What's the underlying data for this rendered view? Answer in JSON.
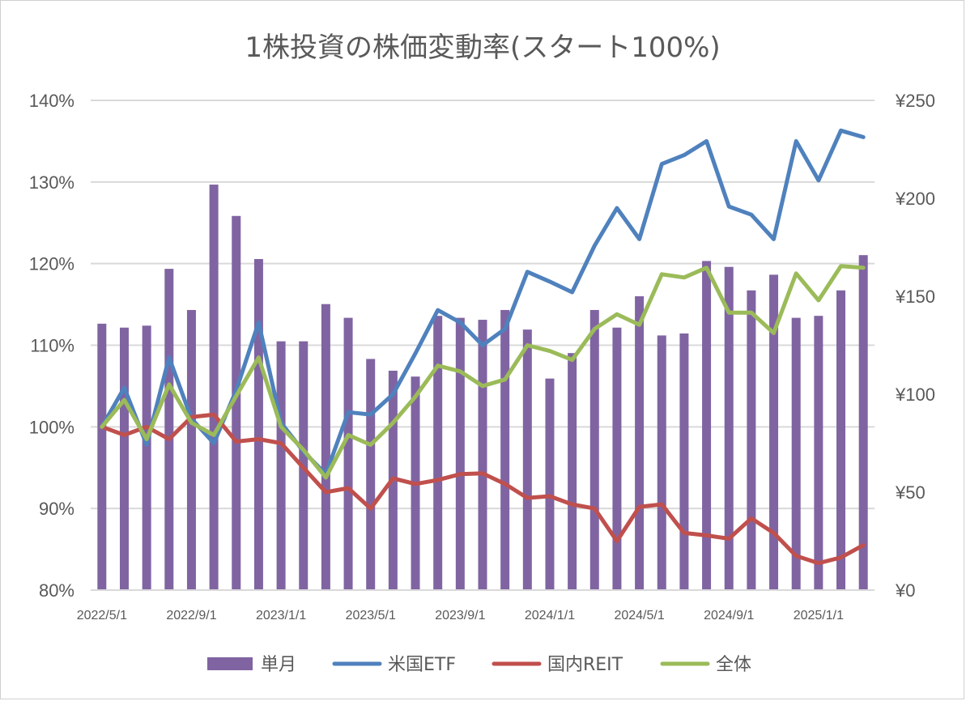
{
  "chart_data": {
    "type": "bar+line",
    "title": "1株投資の株価変動率(スタート100%)",
    "x": [
      "2022/5/1",
      "2022/6/1",
      "2022/7/1",
      "2022/8/1",
      "2022/9/1",
      "2022/10/1",
      "2022/11/1",
      "2022/12/1",
      "2023/1/1",
      "2023/2/1",
      "2023/3/1",
      "2023/4/1",
      "2023/5/1",
      "2023/6/1",
      "2023/7/1",
      "2023/8/1",
      "2023/9/1",
      "2023/10/1",
      "2023/11/1",
      "2023/12/1",
      "2024/1/1",
      "2024/2/1",
      "2024/3/1",
      "2024/4/1",
      "2024/5/1",
      "2024/6/1",
      "2024/7/1",
      "2024/8/1",
      "2024/9/1",
      "2024/10/1",
      "2024/11/1",
      "2024/12/1",
      "2025/1/1",
      "2025/2/1",
      "2025/3/1"
    ],
    "x_tick_labels": [
      "2022/5/1",
      "2022/9/1",
      "2023/1/1",
      "2023/5/1",
      "2023/9/1",
      "2024/1/1",
      "2024/5/1",
      "2024/9/1",
      "2025/1/1"
    ],
    "left_axis": {
      "ylim": [
        0.8,
        1.4
      ],
      "ticks": [
        "80%",
        "90%",
        "100%",
        "110%",
        "120%",
        "130%",
        "140%"
      ],
      "tick_values": [
        0.8,
        0.9,
        1.0,
        1.1,
        1.2,
        1.3,
        1.4
      ]
    },
    "right_axis": {
      "ylim": [
        0,
        250
      ],
      "ticks": [
        "¥0",
        "¥50",
        "¥100",
        "¥150",
        "¥200",
        "¥250"
      ],
      "tick_values": [
        0,
        50,
        100,
        150,
        200,
        250
      ]
    },
    "grid": "horizontal",
    "legend_position": "bottom",
    "bar_series": {
      "name": "単月",
      "axis": "right",
      "color": "#8064a2",
      "values": [
        136,
        134,
        135,
        164,
        143,
        207,
        191,
        169,
        127,
        127,
        146,
        139,
        118,
        112,
        109,
        140,
        139,
        138,
        143,
        133,
        108,
        121,
        143,
        134,
        150,
        130,
        131,
        168,
        165,
        153,
        161,
        139,
        140,
        153,
        171
      ]
    },
    "line_series": [
      {
        "name": "米国ETF",
        "axis": "left",
        "color": "#4f81bd",
        "values": [
          1.0,
          1.048,
          0.978,
          1.085,
          1.01,
          0.98,
          1.045,
          1.128,
          1.005,
          0.97,
          0.942,
          1.018,
          1.015,
          1.04,
          1.09,
          1.143,
          1.128,
          1.1,
          1.12,
          1.19,
          1.178,
          1.165,
          1.222,
          1.268,
          1.23,
          1.322,
          1.333,
          1.35,
          1.27,
          1.26,
          1.23,
          1.35,
          1.302,
          1.363,
          1.355
        ]
      },
      {
        "name": "国内REIT",
        "axis": "left",
        "color": "#c0504d",
        "values": [
          1.0,
          0.99,
          1.0,
          0.985,
          1.012,
          1.015,
          0.982,
          0.985,
          0.98,
          0.95,
          0.92,
          0.925,
          0.9,
          0.937,
          0.93,
          0.935,
          0.942,
          0.943,
          0.93,
          0.913,
          0.915,
          0.905,
          0.9,
          0.86,
          0.902,
          0.905,
          0.87,
          0.867,
          0.863,
          0.888,
          0.87,
          0.842,
          0.833,
          0.84,
          0.855
        ]
      },
      {
        "name": "全体",
        "axis": "left",
        "color": "#9bbb59",
        "values": [
          1.0,
          1.033,
          0.985,
          1.052,
          1.005,
          0.99,
          1.038,
          1.085,
          1.0,
          0.972,
          0.938,
          0.99,
          0.978,
          1.005,
          1.037,
          1.075,
          1.068,
          1.05,
          1.058,
          1.1,
          1.093,
          1.082,
          1.12,
          1.138,
          1.125,
          1.187,
          1.183,
          1.195,
          1.14,
          1.14,
          1.115,
          1.188,
          1.155,
          1.197,
          1.195
        ]
      }
    ]
  }
}
